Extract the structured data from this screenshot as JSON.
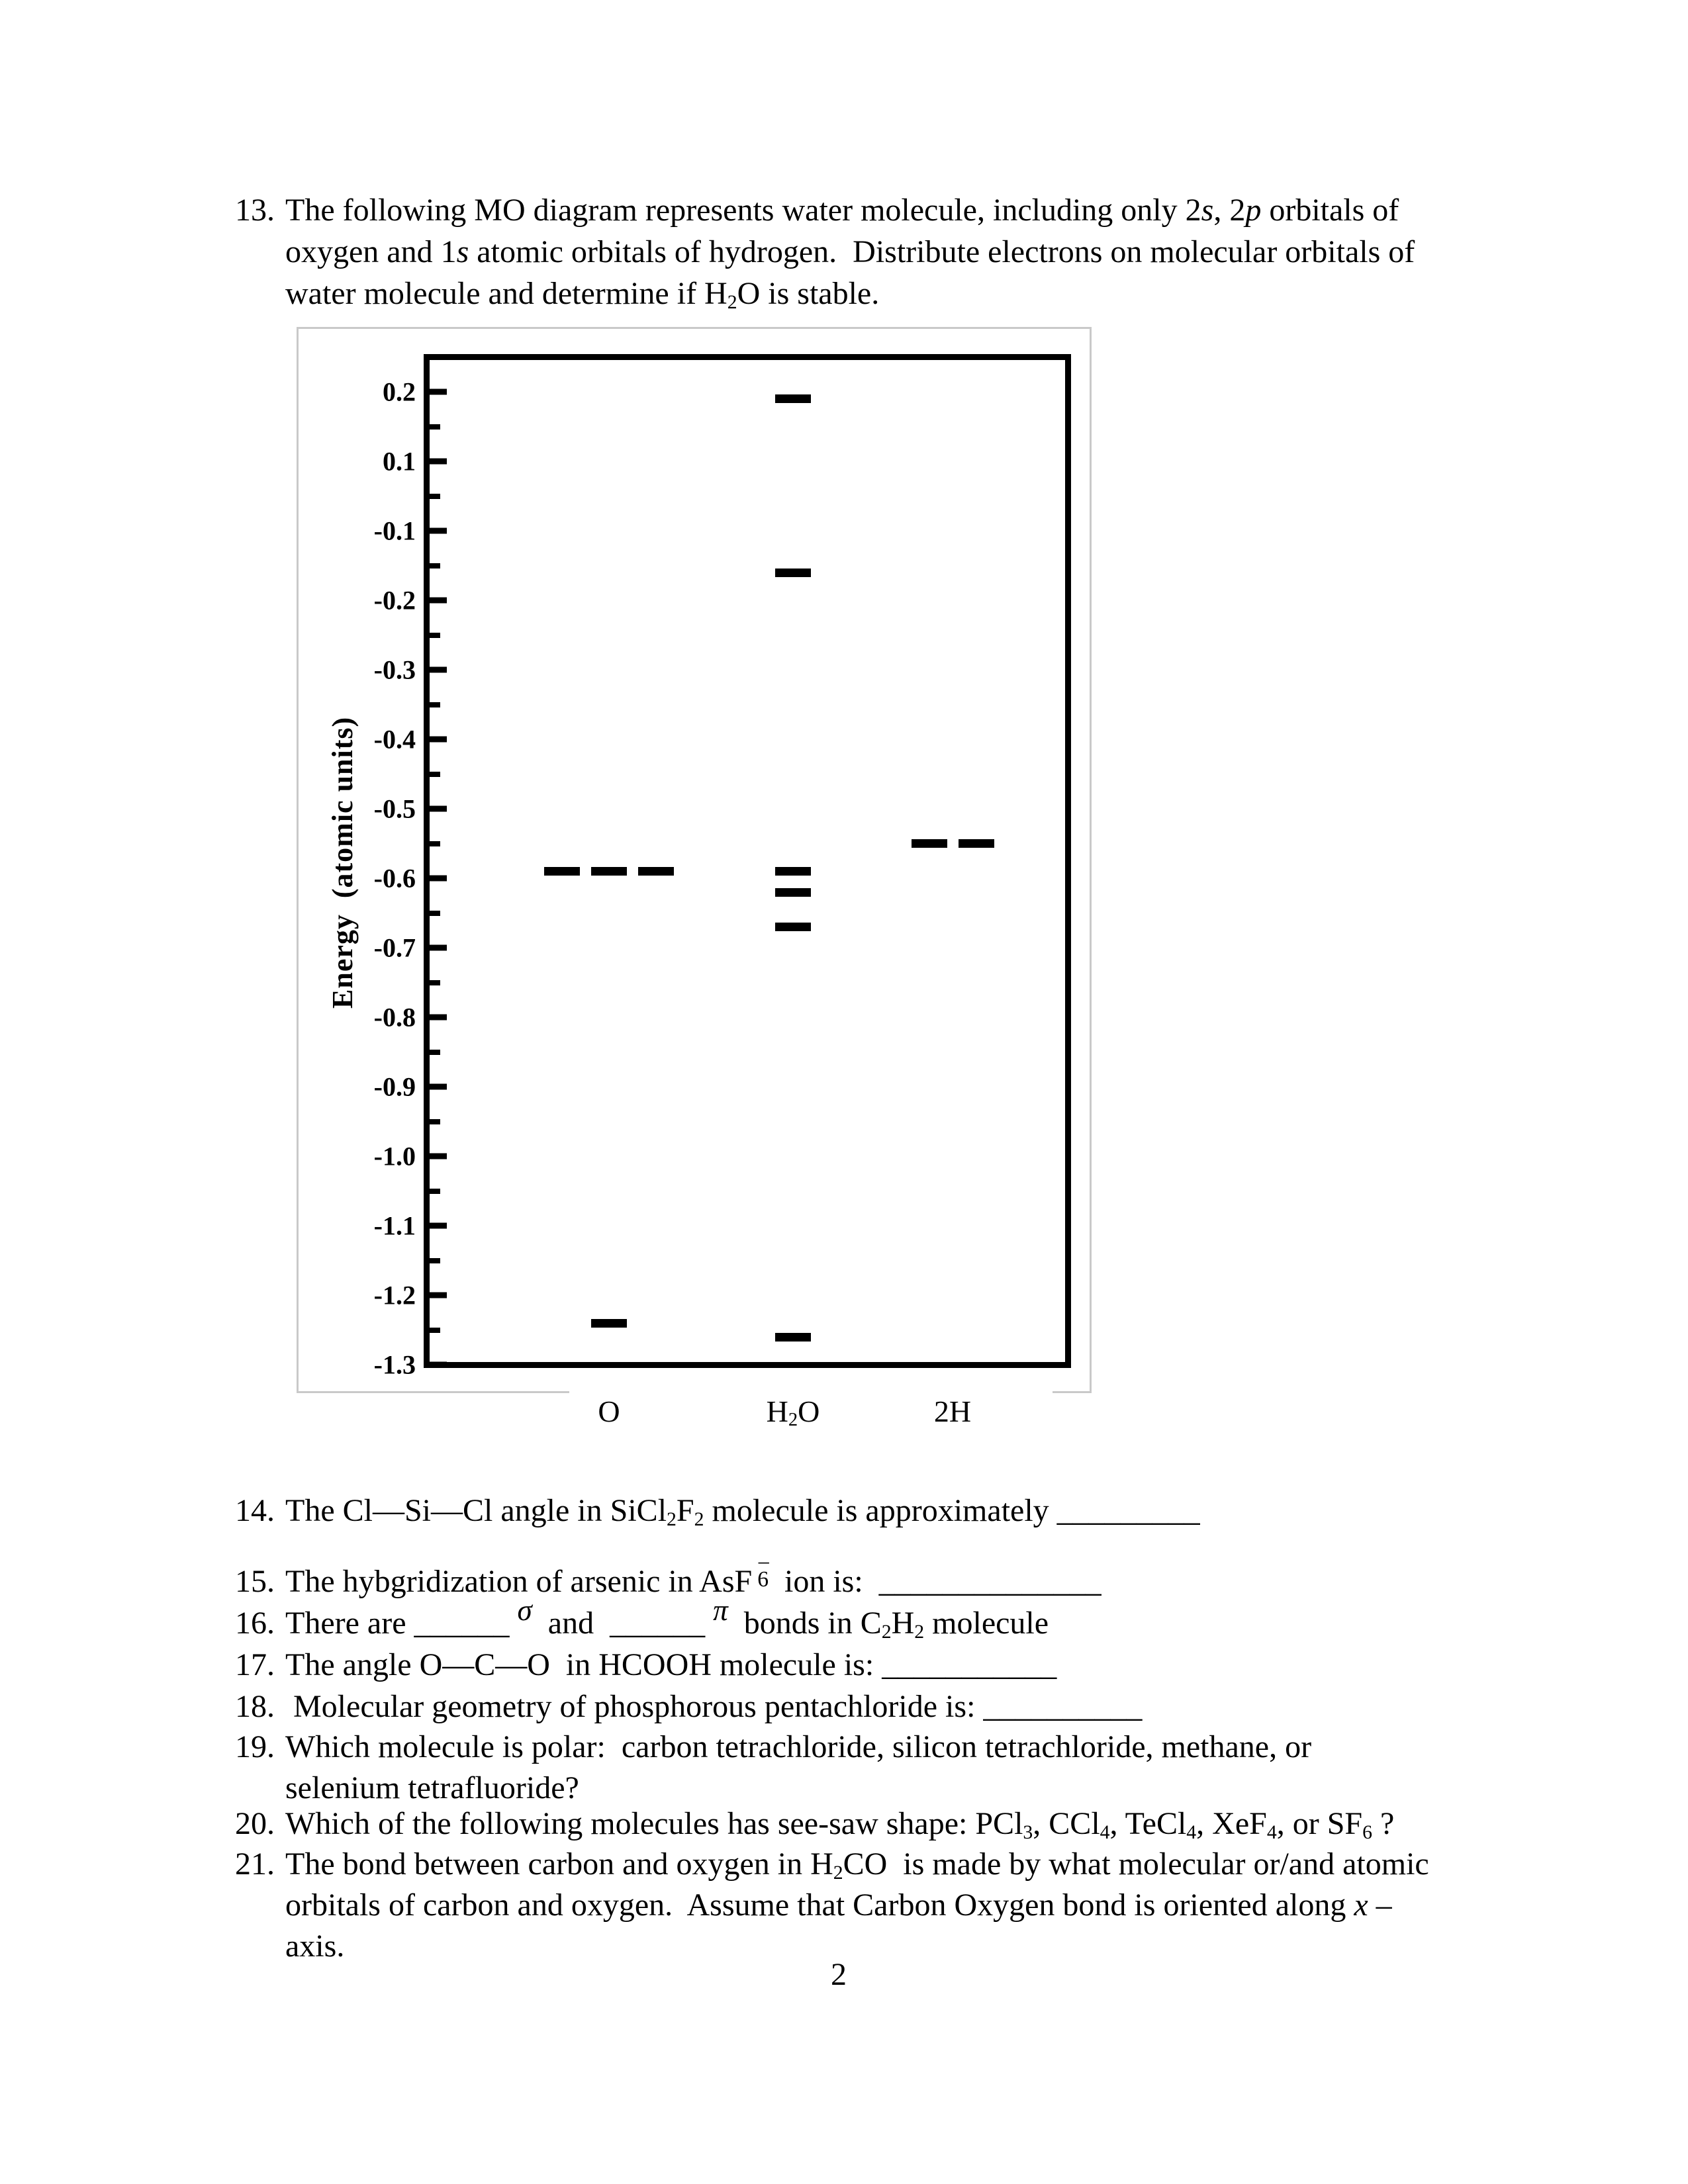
{
  "page": {
    "number": "2"
  },
  "questions": {
    "q13": {
      "num": "13.",
      "lines": [
        "The following MO diagram represents water molecule, including only 2<i>s</i>, 2<i>p</i> orbitals of",
        "oxygen and 1<i>s</i> atomic orbitals of hydrogen.  Distribute electrons on molecular orbitals of",
        "water molecule and determine if H<sub>2</sub>O is stable."
      ]
    },
    "q14": {
      "num": "14.",
      "html": "The Cl—Si—Cl angle in SiCl<sub>2</sub>F<sub>2</sub> molecule is approximately _________"
    },
    "q15": {
      "num": "15.",
      "html": "The hybgridization of arsenic in AsF<span class=\"st6\"><span class=\"st6m\">–</span>6</span>  ion is:  ______________"
    },
    "q16": {
      "num": "16.",
      "html": "There are ______ <span class=\"gk\">σ</span>  and  ______ <span class=\"gk\">π</span>  bonds in C<sub>2</sub>H<sub>2</sub> molecule"
    },
    "q17": {
      "num": "17.",
      "html": "The angle O—C—O  in HCOOH molecule is: ___________"
    },
    "q18": {
      "num": "18.",
      "html": " Molecular geometry of phosphorous pentachloride is: __________"
    },
    "q19": {
      "num": "19.",
      "lines": [
        "Which molecule is polar:  carbon tetrachloride, silicon tetrachloride, methane, or",
        "selenium tetrafluoride?"
      ]
    },
    "q20": {
      "num": "20.",
      "html": "Which of the following molecules has see-saw shape: PCl<sub>3</sub>, CCl<sub>4</sub>, TeCl<sub>4</sub>, XeF<sub>4</sub>, or SF<sub>6</sub> ?"
    },
    "q21": {
      "num": "21.",
      "lines": [
        "The bond between carbon and oxygen in H<sub>2</sub>CO  is made by what molecular or/and atomic",
        "orbitals of carbon and oxygen.  Assume that Carbon Oxygen bond is oriented along <i>x</i> –",
        "axis."
      ]
    }
  },
  "chart_data": {
    "type": "scatter",
    "subtype": "molecular-orbital-energy-level-diagram",
    "marker": "horizontal-dash",
    "title": "",
    "xlabel": "",
    "ylabel": "Energy  (atomic units)",
    "x_categories": [
      "O",
      "H2O",
      "2H"
    ],
    "x_category_labels_html": [
      "O",
      "H<sub>2</sub>O",
      "2H"
    ],
    "y_tick_labels": [
      "0.2",
      "0.1",
      "-0.1",
      "-0.2",
      "-0.3",
      "-0.4",
      "-0.5",
      "-0.6",
      "-0.7",
      "-0.8",
      "-0.9",
      "-1.0",
      "-1.1",
      "-1.2",
      "-1.3"
    ],
    "y_axis_note": "evenly spaced major ticks with one minor tick between each pair; the 0.0 label is omitted between 0.1 and -0.1",
    "ylim": [
      0.25,
      -1.3
    ],
    "grid": false,
    "legend": "none",
    "series": [
      {
        "name": "O",
        "levels": [
          {
            "energy": -0.59,
            "degeneracy": 3
          },
          {
            "energy": -1.24,
            "degeneracy": 1
          }
        ]
      },
      {
        "name": "H2O",
        "levels": [
          {
            "energy": 0.19,
            "degeneracy": 1
          },
          {
            "energy": -0.16,
            "degeneracy": 1
          },
          {
            "energy": -0.59,
            "degeneracy": 1
          },
          {
            "energy": -0.62,
            "degeneracy": 1
          },
          {
            "energy": -0.67,
            "degeneracy": 1
          },
          {
            "energy": -1.26,
            "degeneracy": 1
          }
        ]
      },
      {
        "name": "2H",
        "levels": [
          {
            "energy": -0.55,
            "degeneracy": 2
          }
        ]
      }
    ]
  }
}
